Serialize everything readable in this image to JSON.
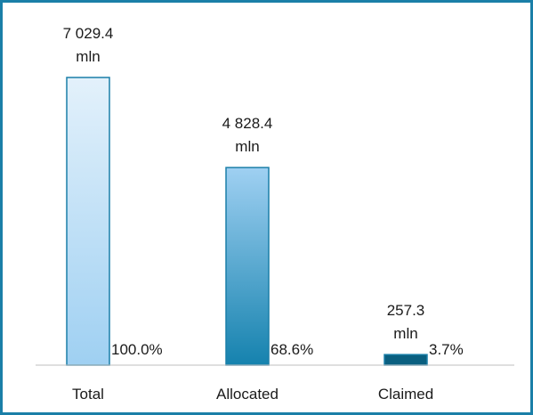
{
  "chart_data": {
    "type": "bar",
    "categories": [
      "Total",
      "Allocated",
      "Claimed"
    ],
    "values": [
      7029.4,
      4828.4,
      257.3
    ],
    "value_labels": [
      [
        "7 029.4",
        "mln"
      ],
      [
        "4 828.4",
        "mln"
      ],
      [
        "257.3",
        "mln"
      ]
    ],
    "percent_labels": [
      "100.0%",
      "68.6%",
      "3.7%"
    ],
    "title": "",
    "xlabel": "",
    "ylabel": "",
    "ylim": [
      0,
      7029.4
    ],
    "grid": false,
    "legend": "none",
    "colors": {
      "frame": "#1a7fa8",
      "bar_total_top": "#e3f1fb",
      "bar_total_bottom": "#9fd0f2",
      "bar_allocated_top": "#9fd0f2",
      "bar_allocated_bottom": "#1582ae",
      "bar_claimed": "#0a5f80",
      "bar_stroke": "#1a7fa8",
      "axis": "#bfbfbf"
    }
  }
}
